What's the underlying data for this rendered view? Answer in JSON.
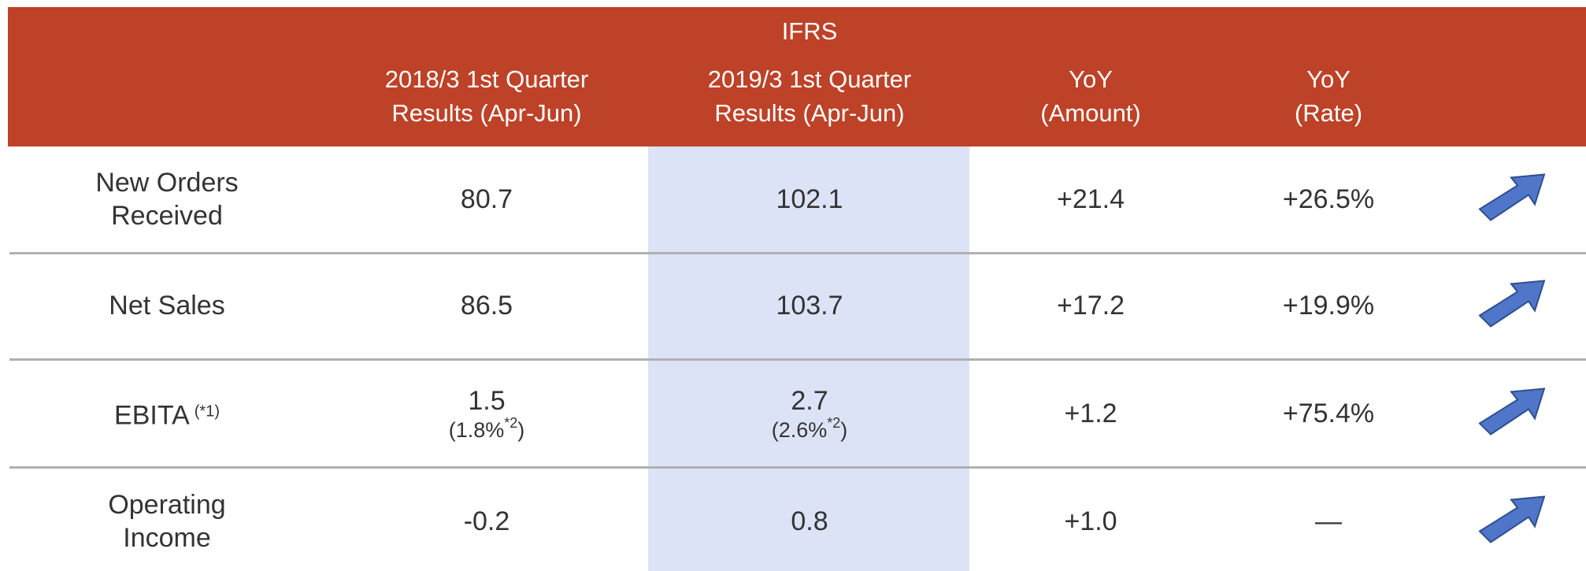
{
  "header": {
    "title": "IFRS",
    "columns": [
      [
        "2018/3 1st Quarter",
        "Results  (Apr-Jun)"
      ],
      [
        "2019/3 1st Quarter",
        "Results  (Apr-Jun)"
      ],
      [
        "YoY",
        "(Amount)"
      ],
      [
        "YoY",
        "(Rate)"
      ]
    ]
  },
  "table": {
    "rows": [
      {
        "label": "New Orders Received",
        "cells": [
          "80.7",
          "102.1",
          "+21.4",
          "+26.5%"
        ]
      },
      {
        "label": "Net Sales",
        "cells": [
          "86.5",
          "103.7",
          "+17.2",
          "+19.9%"
        ]
      },
      {
        "label": "EBITA",
        "label_note": "(*1)",
        "cells": [
          "1.5",
          "2.7",
          "+1.2",
          "+75.4%"
        ],
        "notes": [
          {
            "pre": "(1.8%",
            "sup": "*2",
            "post": ")"
          },
          {
            "pre": "(2.6%",
            "sup": "*2",
            "post": ")"
          }
        ]
      },
      {
        "label": "Operating Income",
        "cells": [
          "-0.2",
          "0.8",
          "+1.0",
          "—"
        ]
      }
    ]
  }
}
